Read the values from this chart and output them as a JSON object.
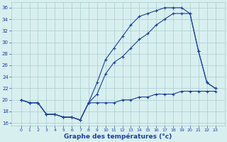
{
  "xlabel": "Graphe des températures (°c)",
  "x": [
    0,
    1,
    2,
    3,
    4,
    5,
    6,
    7,
    8,
    9,
    10,
    11,
    12,
    13,
    14,
    15,
    16,
    17,
    18,
    19,
    20,
    21,
    22,
    23
  ],
  "line1": [
    20.0,
    19.5,
    19.5,
    17.5,
    17.5,
    17.0,
    17.0,
    16.5,
    19.5,
    23.0,
    27.0,
    29.0,
    31.0,
    33.0,
    34.5,
    35.0,
    35.5,
    36.0,
    36.0,
    36.0,
    35.0,
    28.5,
    23.0,
    22.0
  ],
  "line2": [
    20.0,
    19.5,
    19.5,
    17.5,
    17.5,
    17.0,
    17.0,
    16.5,
    19.5,
    21.0,
    24.5,
    26.5,
    27.5,
    29.0,
    30.5,
    31.5,
    33.0,
    34.0,
    35.0,
    35.0,
    35.0,
    28.5,
    23.0,
    22.0
  ],
  "line3": [
    20.0,
    19.5,
    19.5,
    17.5,
    17.5,
    17.0,
    17.0,
    16.5,
    19.5,
    19.5,
    19.5,
    19.5,
    20.0,
    20.0,
    20.5,
    20.5,
    21.0,
    21.0,
    21.0,
    21.5,
    21.5,
    21.5,
    21.5,
    21.5
  ],
  "line_color": "#1c3f9e",
  "bg_color": "#d8eff0",
  "grid_color": "#aacccc",
  "ylim": [
    15.5,
    37
  ],
  "yticks": [
    16,
    18,
    20,
    22,
    24,
    26,
    28,
    30,
    32,
    34,
    36
  ],
  "xticks": [
    0,
    1,
    2,
    3,
    4,
    5,
    6,
    7,
    8,
    9,
    10,
    11,
    12,
    13,
    14,
    15,
    16,
    17,
    18,
    19,
    20,
    21,
    22,
    23
  ],
  "marker": "+",
  "markersize": 3,
  "linewidth": 0.8
}
